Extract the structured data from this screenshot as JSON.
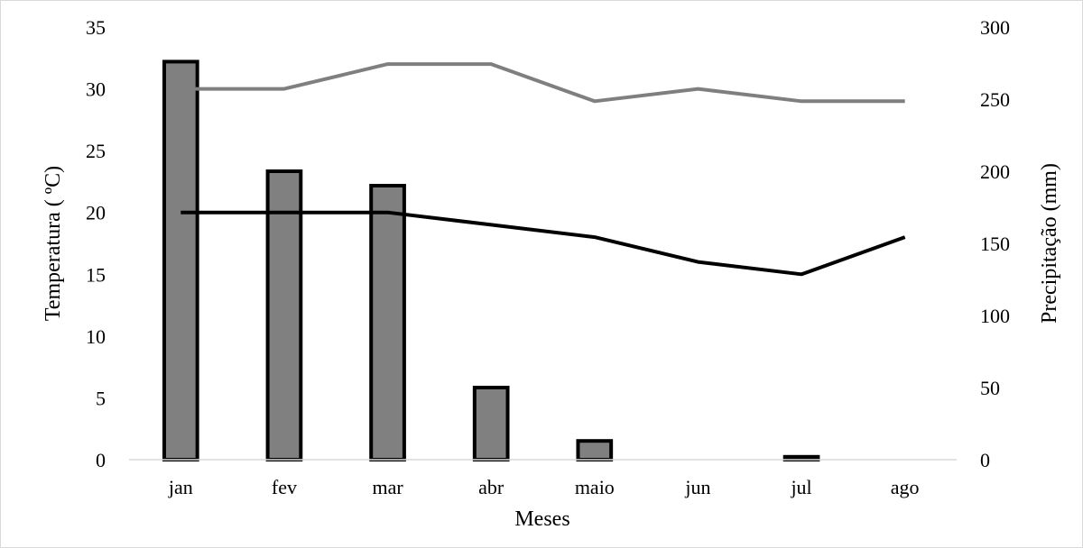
{
  "chart_data": {
    "type": "bar",
    "categories": [
      "jan",
      "fev",
      "mar",
      "abr",
      "maio",
      "jun",
      "jul",
      "ago"
    ],
    "xlabel": "Meses",
    "ylabel": "Temperatura ( ºC)",
    "y2label": "Precipitação (mm)",
    "ylim": [
      0,
      35
    ],
    "y2lim": [
      0,
      300
    ],
    "yticks": [
      "0",
      "5",
      "10",
      "15",
      "20",
      "25",
      "30",
      "35"
    ],
    "y2ticks": [
      "0",
      "50",
      "100",
      "150",
      "200",
      "250",
      "300"
    ],
    "grid": false,
    "legend": "none",
    "series": [
      {
        "kind": "bar",
        "axis": "right",
        "color": "#808080",
        "values": [
          276,
          200,
          190,
          50,
          13,
          0,
          2,
          0
        ]
      },
      {
        "kind": "line",
        "axis": "left",
        "color": "#7f7f7f",
        "values": [
          30,
          30,
          32,
          32,
          29,
          30,
          29,
          29
        ]
      },
      {
        "kind": "line",
        "axis": "left",
        "color": "#000000",
        "values": [
          20,
          20,
          20,
          19,
          18,
          16,
          15,
          18
        ]
      }
    ]
  }
}
